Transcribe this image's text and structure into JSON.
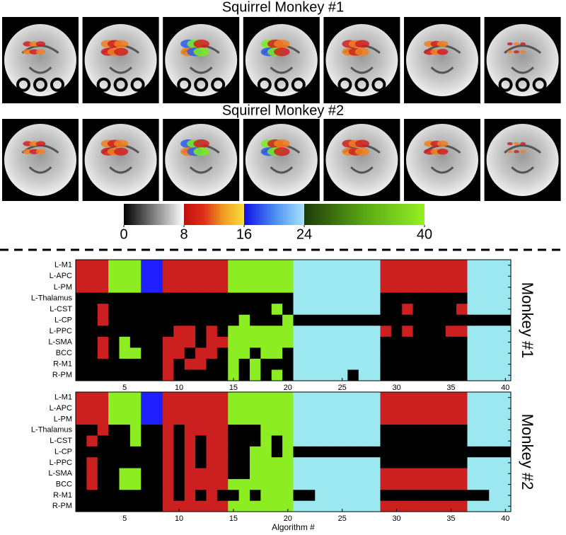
{
  "titles": [
    "Squirrel Monkey #1",
    "Squirrel Monkey #2"
  ],
  "colorbar": {
    "xlim": [
      0,
      40
    ],
    "xticks": [
      0,
      8,
      16,
      24,
      40
    ],
    "segments": [
      {
        "start": 0,
        "end": 8,
        "colors": [
          "#000000",
          "#ffffff"
        ]
      },
      {
        "start": 8,
        "end": 16,
        "colors": [
          "#c01010",
          "#e03018",
          "#f0a020",
          "#f8e040"
        ]
      },
      {
        "start": 16,
        "end": 24,
        "colors": [
          "#1010e8",
          "#4a8cf0",
          "#a8e4ff"
        ]
      },
      {
        "start": 24,
        "end": 40,
        "colors": [
          "#1e3a0c",
          "#5aa812",
          "#96f024"
        ]
      }
    ]
  },
  "chart_data": [
    {
      "type": "heatmap",
      "title": "Monkey #1",
      "xlim": [
        0.5,
        40.5
      ],
      "xticks": [
        5,
        10,
        15,
        20,
        25,
        30,
        35,
        40
      ],
      "palette": [
        "#000000",
        "#cc2020",
        "#8cee22",
        "#2020ff",
        "#9ce8f0"
      ],
      "rows": [
        "L-M1",
        "L-APC",
        "L-PM",
        "L-Thalamus",
        "L-CST",
        "L-CP",
        "L-PPC",
        "L-SMA",
        "BCC",
        "R-M1",
        "R-PM"
      ],
      "values": [
        [
          1,
          1,
          1,
          2,
          2,
          2,
          3,
          3,
          1,
          1,
          1,
          1,
          1,
          1,
          2,
          2,
          2,
          2,
          2,
          2,
          4,
          4,
          4,
          4,
          4,
          4,
          4,
          4,
          1,
          1,
          1,
          1,
          1,
          1,
          1,
          1,
          4,
          4,
          4,
          4
        ],
        [
          1,
          1,
          1,
          2,
          2,
          2,
          3,
          3,
          1,
          1,
          1,
          1,
          1,
          1,
          2,
          2,
          2,
          2,
          2,
          2,
          4,
          4,
          4,
          4,
          4,
          4,
          4,
          4,
          1,
          1,
          1,
          1,
          1,
          1,
          1,
          1,
          4,
          4,
          4,
          4
        ],
        [
          1,
          1,
          1,
          2,
          2,
          2,
          3,
          3,
          1,
          1,
          1,
          1,
          1,
          1,
          2,
          2,
          2,
          2,
          2,
          2,
          4,
          4,
          4,
          4,
          4,
          4,
          4,
          4,
          1,
          1,
          1,
          1,
          1,
          1,
          1,
          1,
          4,
          4,
          4,
          4
        ],
        [
          0,
          0,
          0,
          0,
          0,
          0,
          0,
          0,
          0,
          0,
          0,
          0,
          0,
          0,
          0,
          0,
          0,
          0,
          0,
          0,
          4,
          4,
          4,
          4,
          4,
          4,
          4,
          4,
          0,
          0,
          0,
          0,
          0,
          0,
          0,
          0,
          4,
          4,
          4,
          4
        ],
        [
          0,
          0,
          1,
          0,
          0,
          0,
          0,
          0,
          0,
          0,
          0,
          0,
          0,
          0,
          0,
          0,
          0,
          0,
          2,
          0,
          4,
          4,
          4,
          4,
          4,
          4,
          4,
          4,
          0,
          0,
          1,
          0,
          0,
          0,
          0,
          1,
          4,
          4,
          4,
          4
        ],
        [
          0,
          0,
          1,
          0,
          0,
          0,
          0,
          0,
          0,
          0,
          0,
          0,
          0,
          0,
          0,
          2,
          0,
          0,
          0,
          2,
          0,
          0,
          0,
          0,
          0,
          0,
          0,
          0,
          0,
          0,
          0,
          0,
          0,
          0,
          0,
          0,
          0,
          0,
          0,
          0
        ],
        [
          0,
          0,
          0,
          0,
          0,
          0,
          0,
          0,
          0,
          1,
          1,
          0,
          1,
          0,
          2,
          2,
          2,
          2,
          2,
          2,
          4,
          4,
          4,
          4,
          4,
          4,
          4,
          4,
          1,
          0,
          1,
          0,
          0,
          0,
          1,
          1,
          4,
          4,
          4,
          4
        ],
        [
          0,
          0,
          1,
          0,
          2,
          0,
          0,
          0,
          1,
          1,
          1,
          0,
          1,
          1,
          2,
          2,
          2,
          2,
          2,
          2,
          4,
          4,
          4,
          4,
          4,
          4,
          4,
          4,
          0,
          0,
          0,
          0,
          0,
          0,
          0,
          0,
          4,
          4,
          4,
          4
        ],
        [
          0,
          0,
          1,
          0,
          2,
          2,
          0,
          0,
          1,
          1,
          0,
          1,
          1,
          0,
          2,
          2,
          0,
          2,
          2,
          0,
          4,
          4,
          4,
          4,
          4,
          4,
          4,
          4,
          0,
          0,
          0,
          0,
          0,
          0,
          0,
          0,
          4,
          4,
          4,
          4
        ],
        [
          0,
          0,
          0,
          0,
          0,
          0,
          0,
          0,
          1,
          0,
          1,
          1,
          0,
          0,
          2,
          0,
          2,
          0,
          0,
          0,
          4,
          4,
          4,
          4,
          4,
          4,
          4,
          4,
          0,
          0,
          0,
          0,
          0,
          0,
          0,
          0,
          4,
          4,
          4,
          4
        ],
        [
          0,
          0,
          0,
          0,
          0,
          0,
          0,
          0,
          1,
          0,
          0,
          0,
          0,
          0,
          2,
          0,
          2,
          0,
          2,
          0,
          4,
          4,
          4,
          4,
          4,
          0,
          4,
          4,
          0,
          0,
          0,
          0,
          0,
          0,
          0,
          0,
          4,
          4,
          4,
          4
        ]
      ]
    },
    {
      "type": "heatmap",
      "title": "Monkey #2",
      "x_label": "Algorithm #",
      "xlim": [
        0.5,
        40.5
      ],
      "xticks": [
        5,
        10,
        15,
        20,
        25,
        30,
        35,
        40
      ],
      "palette": [
        "#000000",
        "#cc2020",
        "#8cee22",
        "#2020ff",
        "#9ce8f0"
      ],
      "rows": [
        "L-M1",
        "L-APC",
        "L-PM",
        "L-Thalamus",
        "L-CST",
        "L-CP",
        "L-PPC",
        "L-SMA",
        "BCC",
        "R-M1",
        "R-PM"
      ],
      "values": [
        [
          1,
          1,
          1,
          2,
          2,
          2,
          3,
          3,
          1,
          1,
          1,
          1,
          1,
          1,
          2,
          2,
          2,
          2,
          2,
          2,
          4,
          4,
          4,
          4,
          4,
          4,
          4,
          4,
          1,
          1,
          1,
          1,
          1,
          1,
          1,
          1,
          4,
          4,
          4,
          4
        ],
        [
          1,
          1,
          1,
          2,
          2,
          2,
          3,
          3,
          1,
          1,
          1,
          1,
          1,
          1,
          2,
          2,
          2,
          2,
          2,
          2,
          4,
          4,
          4,
          4,
          4,
          4,
          4,
          4,
          1,
          1,
          1,
          1,
          1,
          1,
          1,
          1,
          4,
          4,
          4,
          4
        ],
        [
          1,
          1,
          1,
          2,
          2,
          2,
          3,
          3,
          1,
          1,
          1,
          1,
          1,
          1,
          2,
          2,
          2,
          2,
          2,
          2,
          4,
          4,
          4,
          4,
          4,
          4,
          4,
          4,
          1,
          1,
          1,
          1,
          1,
          1,
          1,
          1,
          4,
          4,
          4,
          4
        ],
        [
          0,
          0,
          1,
          0,
          0,
          2,
          0,
          0,
          1,
          0,
          1,
          1,
          1,
          1,
          0,
          0,
          0,
          2,
          2,
          2,
          4,
          4,
          4,
          4,
          4,
          4,
          4,
          4,
          0,
          0,
          0,
          0,
          0,
          0,
          0,
          0,
          4,
          4,
          4,
          4
        ],
        [
          0,
          1,
          0,
          0,
          0,
          2,
          0,
          0,
          1,
          0,
          1,
          0,
          1,
          1,
          0,
          0,
          0,
          2,
          0,
          2,
          4,
          4,
          4,
          4,
          4,
          4,
          4,
          4,
          0,
          0,
          0,
          0,
          0,
          0,
          0,
          0,
          4,
          4,
          4,
          4
        ],
        [
          0,
          0,
          0,
          0,
          0,
          0,
          0,
          0,
          1,
          0,
          1,
          0,
          1,
          1,
          0,
          0,
          2,
          2,
          0,
          2,
          0,
          0,
          0,
          0,
          0,
          0,
          0,
          0,
          0,
          0,
          0,
          0,
          0,
          0,
          0,
          0,
          0,
          0,
          0,
          0
        ],
        [
          0,
          1,
          0,
          0,
          0,
          0,
          0,
          0,
          1,
          0,
          1,
          0,
          1,
          1,
          0,
          0,
          2,
          2,
          2,
          2,
          4,
          4,
          4,
          4,
          4,
          4,
          4,
          4,
          0,
          0,
          0,
          0,
          0,
          0,
          0,
          0,
          4,
          4,
          4,
          4
        ],
        [
          0,
          1,
          0,
          0,
          2,
          2,
          0,
          0,
          1,
          0,
          1,
          1,
          1,
          1,
          0,
          0,
          2,
          2,
          2,
          2,
          4,
          4,
          4,
          4,
          4,
          4,
          4,
          4,
          1,
          1,
          1,
          1,
          1,
          1,
          1,
          1,
          4,
          4,
          4,
          4
        ],
        [
          0,
          1,
          0,
          0,
          2,
          2,
          0,
          0,
          1,
          0,
          1,
          1,
          1,
          1,
          2,
          2,
          2,
          2,
          2,
          2,
          4,
          4,
          4,
          4,
          4,
          4,
          4,
          4,
          1,
          1,
          1,
          1,
          1,
          1,
          1,
          1,
          4,
          4,
          4,
          4
        ],
        [
          0,
          0,
          0,
          0,
          0,
          0,
          0,
          0,
          1,
          0,
          1,
          0,
          1,
          0,
          0,
          2,
          0,
          2,
          2,
          2,
          0,
          0,
          4,
          4,
          4,
          4,
          4,
          4,
          0,
          0,
          0,
          0,
          0,
          0,
          0,
          0,
          0,
          0,
          4,
          4
        ],
        [
          0,
          0,
          0,
          0,
          0,
          0,
          0,
          0,
          1,
          1,
          1,
          1,
          1,
          1,
          2,
          2,
          2,
          2,
          2,
          2,
          4,
          4,
          4,
          4,
          4,
          4,
          4,
          4,
          1,
          1,
          1,
          1,
          1,
          1,
          1,
          1,
          4,
          4,
          4,
          4
        ]
      ]
    }
  ]
}
